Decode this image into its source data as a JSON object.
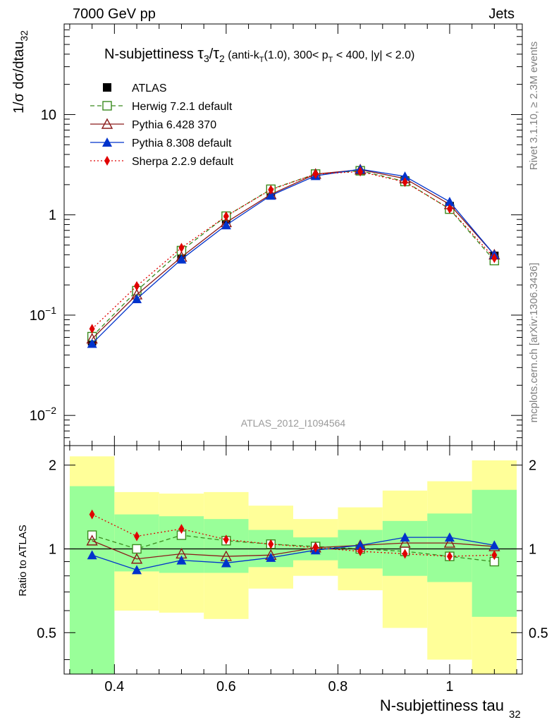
{
  "header": {
    "left": "7000 GeV pp",
    "right": "Jets"
  },
  "side": {
    "rivet": "Rivet 3.1.10, ≥ 2.3M events",
    "mcplots": "mcplots.cern.ch [arXiv:1306.3436]"
  },
  "chart_data": [
    {
      "type": "line",
      "title": "N-subjettiness τ₃/τ₂ (anti-k_T(1.0), 300< p_T < 400, |y| < 2.0)",
      "title_parts": {
        "lead": "N-subjettiness ",
        "tau": "τ",
        "sub3": "3",
        "slash": "/",
        "sub2": "2",
        "paren1": " (anti-k",
        "subT1": "T",
        "paren2": "(1.0), 300< p",
        "subT2": "T",
        "paren3": " < 400, |y| < 2.0)"
      },
      "ylabel": {
        "main": "1/σ dσ/dtau",
        "sub": "32"
      },
      "yscale": "log",
      "ylim": [
        0.005,
        80
      ],
      "xlim": [
        0.31,
        1.13
      ],
      "yticks": [
        {
          "value": 10,
          "label": "10"
        },
        {
          "value": 1,
          "label": "1"
        },
        {
          "value": 0.1,
          "label": "10",
          "exp": "−1"
        },
        {
          "value": 0.01,
          "label": "10",
          "exp": "−2"
        }
      ],
      "watermark": "ATLAS_2012_I1094564",
      "legend_position": "top-left",
      "x": [
        0.36,
        0.44,
        0.52,
        0.6,
        0.68,
        0.76,
        0.84,
        0.92,
        1.0,
        1.08
      ],
      "series": [
        {
          "name": "ATLAS",
          "color": "#000000",
          "marker": "square-filled",
          "style": "none",
          "values": [
            0.055,
            0.175,
            0.4,
            0.9,
            1.7,
            2.5,
            2.75,
            2.2,
            1.22,
            0.39
          ],
          "errors": [
            0.005,
            0.012,
            0.02,
            0.04,
            0.06,
            0.08,
            0.08,
            0.08,
            0.05,
            0.02
          ]
        },
        {
          "name": "Herwig 7.2.1 default",
          "color": "#3a8a1e",
          "marker": "square-open",
          "style": "dashed",
          "values": [
            0.061,
            0.175,
            0.44,
            0.97,
            1.8,
            2.55,
            2.75,
            2.15,
            1.14,
            0.35
          ]
        },
        {
          "name": "Pythia 6.428 370",
          "color": "#8b1a1a",
          "marker": "triangle-open",
          "style": "solid",
          "values": [
            0.058,
            0.16,
            0.38,
            0.84,
            1.6,
            2.55,
            2.82,
            2.3,
            1.27,
            0.4
          ]
        },
        {
          "name": "Pythia 8.308 default",
          "color": "#0033cc",
          "marker": "triangle-filled",
          "style": "solid",
          "values": [
            0.052,
            0.145,
            0.36,
            0.79,
            1.56,
            2.45,
            2.85,
            2.42,
            1.35,
            0.4
          ]
        },
        {
          "name": "Sherpa 2.2.9 default",
          "color": "#e00000",
          "marker": "diamond-filled",
          "style": "dotted",
          "values": [
            0.073,
            0.195,
            0.47,
            0.97,
            1.78,
            2.55,
            2.7,
            2.12,
            1.15,
            0.37
          ]
        }
      ]
    },
    {
      "type": "line",
      "ylabel": "Ratio to ATLAS",
      "xlabel": {
        "main": "N-subjettiness tau",
        "sub": "32"
      },
      "yscale": "log",
      "ylim": [
        0.355,
        2.35
      ],
      "xlim": [
        0.31,
        1.13
      ],
      "yticks": [
        {
          "value": 2,
          "label": "2"
        },
        {
          "value": 1,
          "label": "1"
        },
        {
          "value": 0.5,
          "label": "0.5"
        }
      ],
      "xticks": [
        {
          "value": 0.4,
          "label": "0.4"
        },
        {
          "value": 0.6,
          "label": "0.6"
        },
        {
          "value": 0.8,
          "label": "0.8"
        },
        {
          "value": 1.0,
          "label": "1"
        }
      ],
      "bands": [
        {
          "x0": 0.32,
          "x1": 0.4,
          "yellow": [
            0.35,
            2.15
          ],
          "green": [
            0.35,
            1.68
          ]
        },
        {
          "x0": 0.4,
          "x1": 0.48,
          "yellow": [
            0.6,
            1.6
          ],
          "green": [
            0.83,
            1.33
          ]
        },
        {
          "x0": 0.48,
          "x1": 0.56,
          "yellow": [
            0.59,
            1.58
          ],
          "green": [
            0.82,
            1.31
          ]
        },
        {
          "x0": 0.56,
          "x1": 0.64,
          "yellow": [
            0.56,
            1.6
          ],
          "green": [
            0.82,
            1.28
          ]
        },
        {
          "x0": 0.64,
          "x1": 0.72,
          "yellow": [
            0.72,
            1.43
          ],
          "green": [
            0.86,
            1.17
          ]
        },
        {
          "x0": 0.72,
          "x1": 0.8,
          "yellow": [
            0.8,
            1.28
          ],
          "green": [
            0.91,
            1.1
          ]
        },
        {
          "x0": 0.8,
          "x1": 0.88,
          "yellow": [
            0.71,
            1.41
          ],
          "green": [
            0.85,
            1.17
          ]
        },
        {
          "x0": 0.88,
          "x1": 0.96,
          "yellow": [
            0.52,
            1.62
          ],
          "green": [
            0.8,
            1.26
          ]
        },
        {
          "x0": 0.96,
          "x1": 1.04,
          "yellow": [
            0.4,
            1.75
          ],
          "green": [
            0.76,
            1.34
          ]
        },
        {
          "x0": 1.04,
          "x1": 1.12,
          "yellow": [
            0.35,
            2.08
          ],
          "green": [
            0.57,
            1.63
          ]
        }
      ],
      "x": [
        0.36,
        0.44,
        0.52,
        0.6,
        0.68,
        0.76,
        0.84,
        0.92,
        1.0,
        1.08
      ],
      "series": [
        {
          "name": "Herwig 7.2.1 default",
          "color": "#3a8a1e",
          "marker": "square-open",
          "style": "dashed",
          "values": [
            1.12,
            1.0,
            1.12,
            1.07,
            1.04,
            1.02,
            1.0,
            0.98,
            0.94,
            0.9
          ]
        },
        {
          "name": "Pythia 6.428 370",
          "color": "#8b1a1a",
          "marker": "triangle-open",
          "style": "solid",
          "values": [
            1.07,
            0.92,
            0.96,
            0.94,
            0.95,
            1.01,
            1.03,
            1.05,
            1.05,
            1.02
          ]
        },
        {
          "name": "Pythia 8.308 default",
          "color": "#0033cc",
          "marker": "triangle-filled",
          "style": "solid",
          "values": [
            0.95,
            0.84,
            0.91,
            0.89,
            0.93,
            0.99,
            1.03,
            1.1,
            1.1,
            1.03
          ]
        },
        {
          "name": "Sherpa 2.2.9 default",
          "color": "#e00000",
          "marker": "diamond-filled",
          "style": "dotted",
          "values": [
            1.33,
            1.11,
            1.18,
            1.08,
            1.04,
            1.01,
            0.98,
            0.96,
            0.94,
            0.95
          ]
        }
      ]
    }
  ]
}
